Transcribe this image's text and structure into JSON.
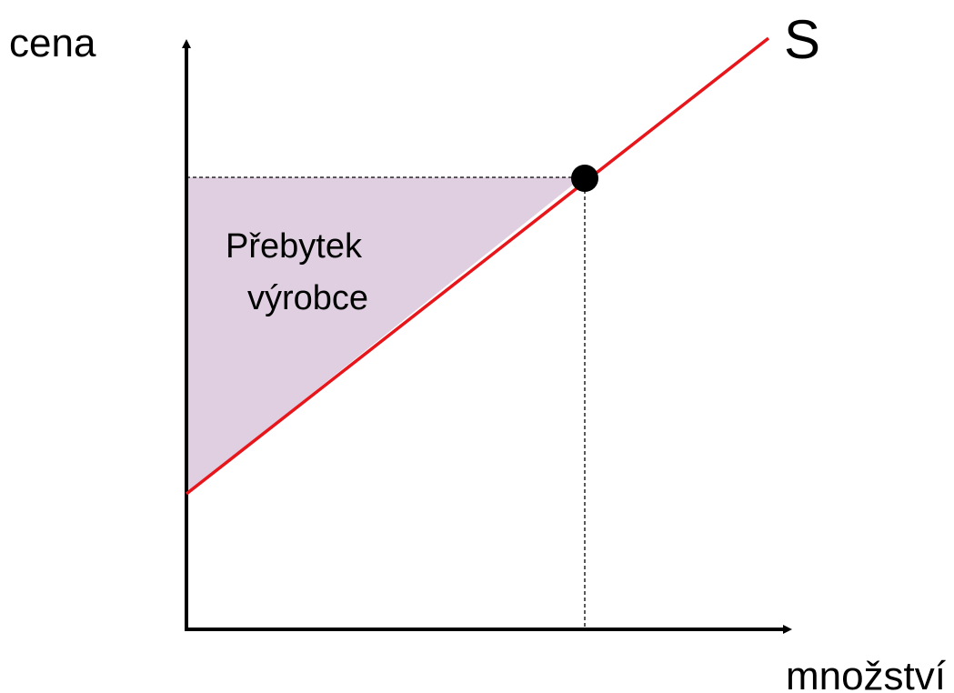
{
  "axes": {
    "y_label": "cena",
    "x_label": "množství"
  },
  "curve": {
    "label": "S"
  },
  "area": {
    "label_lines": [
      "Přebytek",
      "výrobce"
    ]
  }
}
